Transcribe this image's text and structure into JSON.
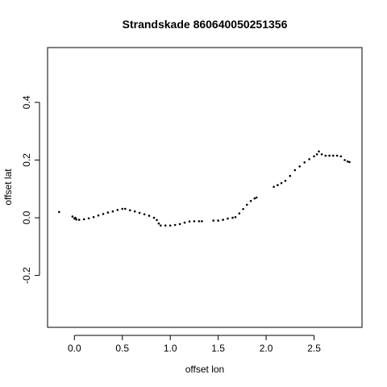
{
  "chart_data": {
    "type": "scatter",
    "title": "Strandskade 860640050251356",
    "xlabel": "offset lon",
    "ylabel": "offset lat",
    "xlim": [
      -0.28,
      3.0
    ],
    "ylim": [
      -0.38,
      0.59
    ],
    "xticks": [
      0.0,
      0.5,
      1.0,
      1.5,
      2.0,
      2.5
    ],
    "xtick_labels": [
      "0.0",
      "0.5",
      "1.0",
      "1.5",
      "2.0",
      "2.5"
    ],
    "yticks": [
      -0.2,
      0.0,
      0.2,
      0.4
    ],
    "ytick_labels": [
      "-0.2",
      "0.0",
      "0.2",
      "0.4"
    ],
    "grid": false,
    "series": [
      {
        "x": [
          -0.16,
          -0.02,
          0.0,
          0.01,
          0.02,
          0.05,
          0.1,
          0.15,
          0.2,
          0.25,
          0.3,
          0.35,
          0.4,
          0.45,
          0.5,
          0.53,
          0.58,
          0.63,
          0.68,
          0.73,
          0.78,
          0.83,
          0.86,
          0.88,
          0.9,
          0.95,
          1.0,
          1.05,
          1.1,
          1.15,
          1.2,
          1.25,
          1.3,
          1.33,
          1.45,
          1.5,
          1.55,
          1.6,
          1.65,
          1.68,
          1.72,
          1.76,
          1.8,
          1.84,
          1.88,
          1.9,
          2.08,
          2.12,
          2.16,
          2.2,
          2.25,
          2.3,
          2.35,
          2.4,
          2.45,
          2.5,
          2.53,
          2.55,
          2.58,
          2.62,
          2.66,
          2.7,
          2.74,
          2.78,
          2.82,
          2.85,
          2.87
        ],
        "y": [
          0.02,
          0.004,
          -0.003,
          0.0,
          -0.006,
          -0.007,
          -0.005,
          -0.002,
          0.002,
          0.008,
          0.013,
          0.018,
          0.022,
          0.027,
          0.031,
          0.031,
          0.026,
          0.022,
          0.017,
          0.012,
          0.007,
          0.0,
          -0.008,
          -0.02,
          -0.027,
          -0.027,
          -0.027,
          -0.025,
          -0.022,
          -0.017,
          -0.013,
          -0.012,
          -0.012,
          -0.012,
          -0.01,
          -0.01,
          -0.007,
          -0.003,
          0.0,
          0.002,
          0.015,
          0.03,
          0.045,
          0.058,
          0.067,
          0.07,
          0.107,
          0.113,
          0.12,
          0.128,
          0.145,
          0.165,
          0.178,
          0.192,
          0.203,
          0.213,
          0.22,
          0.23,
          0.22,
          0.215,
          0.215,
          0.215,
          0.215,
          0.213,
          0.2,
          0.195,
          0.193
        ]
      }
    ]
  }
}
